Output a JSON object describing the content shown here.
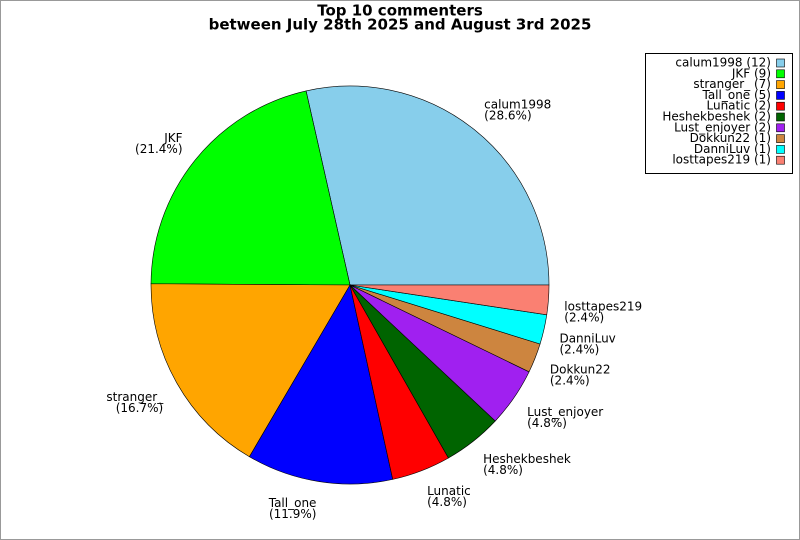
{
  "chart_data": {
    "type": "pie",
    "title": "Top 10 commenters",
    "subtitle": "between July 28th 2025 and August 3rd 2025",
    "categories": [
      "calum1998",
      "JKF",
      "stranger_",
      "Tall_one",
      "Lunatic",
      "Heshekbeshek",
      "Lust_enjoyer",
      "Dokkun22",
      "DanniLuv",
      "losttapes219"
    ],
    "values": [
      28.6,
      21.4,
      16.7,
      11.9,
      4.8,
      4.8,
      4.8,
      2.4,
      2.4,
      2.4
    ],
    "value_labels": [
      "(28.6%)",
      "(21.4%)",
      "(16.7%)",
      "(11.9%)",
      "(4.8%)",
      "(4.8%)",
      "(4.8%)",
      "(2.4%)",
      "(2.4%)",
      "(2.4%)"
    ],
    "legend_labels": [
      "calum1998 (12)",
      "JKF (9)",
      "stranger_ (7)",
      "Tall_one (5)",
      "Lunatic (2)",
      "Heshekbeshek (2)",
      "Lust_enjoyer (2)",
      "Dokkun22 (1)",
      "DanniLuv (1)",
      "losttapes219 (1)"
    ],
    "colors": [
      "#87ceeb",
      "#00ff00",
      "#ffa500",
      "#0000ff",
      "#ff0000",
      "#006400",
      "#a020f0",
      "#cd853f",
      "#00ffff",
      "#fa8072"
    ]
  }
}
